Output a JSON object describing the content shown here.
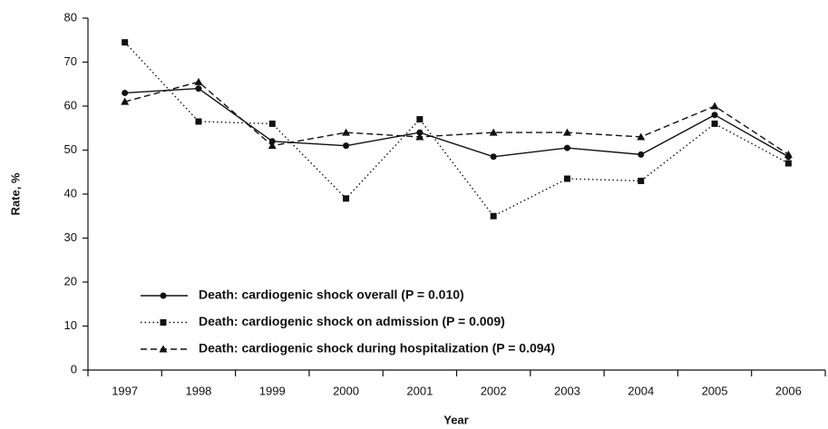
{
  "chart_data": {
    "type": "line",
    "x_label": "Year",
    "y_label": "Rate, %",
    "categories": [
      "1997",
      "1998",
      "1999",
      "2000",
      "2001",
      "2002",
      "2003",
      "2004",
      "2005",
      "2006"
    ],
    "series": [
      {
        "name": "Death: cardiogenic shock overall (P = 0.010)",
        "color": "#111111",
        "marker": "circle",
        "linestyle": "solid",
        "values": [
          63,
          64,
          52,
          51,
          54,
          48.5,
          50.5,
          49,
          58,
          48.5
        ]
      },
      {
        "name": "Death: cardiogenic shock on admission (P = 0.009)",
        "color": "#111111",
        "marker": "square",
        "linestyle": "dotted",
        "values": [
          74.5,
          56.5,
          56,
          39,
          57,
          35,
          43.5,
          43,
          56,
          47
        ]
      },
      {
        "name": "Death: cardiogenic shock during hospitalization (P = 0.094)",
        "color": "#111111",
        "marker": "triangle",
        "linestyle": "dashed",
        "values": [
          61,
          65.5,
          51,
          54,
          53,
          54,
          54,
          53,
          60,
          49
        ]
      }
    ],
    "ylim": [
      0,
      80
    ],
    "yticks": [
      0,
      10,
      20,
      30,
      40,
      50,
      60,
      70,
      80
    ],
    "grid": false
  }
}
